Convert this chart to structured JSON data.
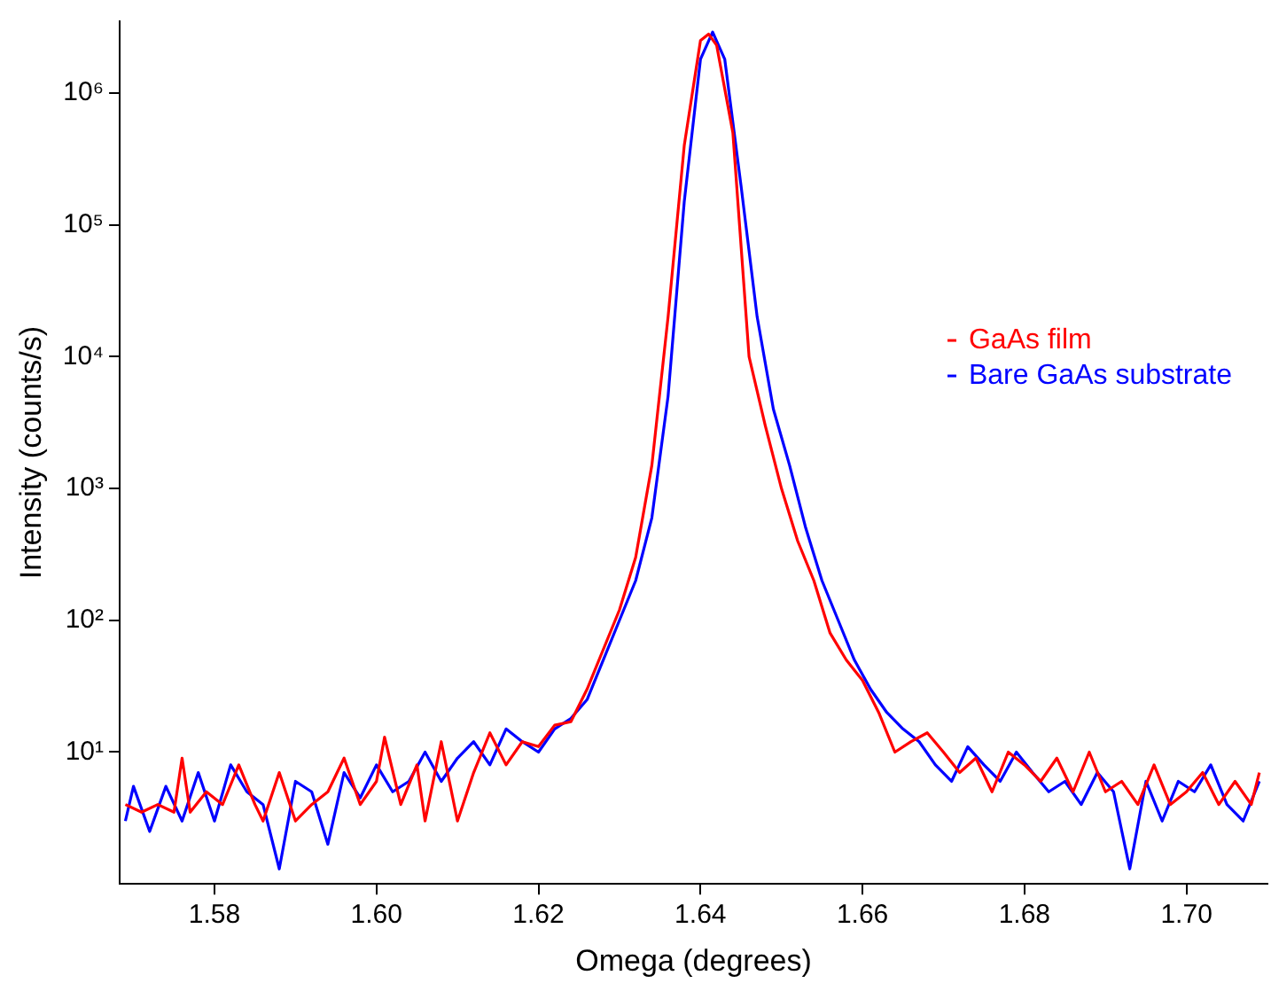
{
  "chart_data": {
    "type": "line",
    "xlabel": "Omega (degrees)",
    "ylabel": "Intensity (counts/s)",
    "log": "y",
    "grid": false,
    "legend": "right",
    "marker": "none",
    "line_style": "solid",
    "xlim": [
      1.5683,
      1.71
    ],
    "ylim": [
      1,
      3500000
    ],
    "xticks": [
      1.58,
      {
        "value": 1.6,
        "label": "1.60"
      },
      1.62,
      1.64,
      1.66,
      1.68,
      {
        "value": 1.7,
        "label": "1.70"
      }
    ],
    "yticks": [
      {
        "value": 10,
        "label": "10¹"
      },
      {
        "value": 100,
        "label": "10²"
      },
      {
        "value": 1000,
        "label": "10³"
      },
      {
        "value": 10000,
        "label": "10⁴"
      },
      {
        "value": 100000,
        "label": "10⁵"
      },
      {
        "value": 1000000,
        "label": "10⁶"
      }
    ],
    "series": [
      {
        "name": "GaAs film",
        "color": "#ff0000",
        "x": [
          1.569,
          1.571,
          1.573,
          1.575,
          1.576,
          1.577,
          1.579,
          1.581,
          1.583,
          1.585,
          1.586,
          1.588,
          1.59,
          1.592,
          1.594,
          1.596,
          1.598,
          1.6,
          1.601,
          1.603,
          1.605,
          1.606,
          1.608,
          1.61,
          1.612,
          1.614,
          1.616,
          1.618,
          1.62,
          1.622,
          1.624,
          1.626,
          1.628,
          1.63,
          1.632,
          1.634,
          1.636,
          1.638,
          1.64,
          1.641,
          1.642,
          1.644,
          1.646,
          1.648,
          1.65,
          1.652,
          1.654,
          1.656,
          1.658,
          1.66,
          1.662,
          1.664,
          1.666,
          1.668,
          1.67,
          1.672,
          1.674,
          1.676,
          1.678,
          1.68,
          1.682,
          1.684,
          1.686,
          1.688,
          1.69,
          1.692,
          1.694,
          1.696,
          1.698,
          1.7,
          1.702,
          1.704,
          1.706,
          1.708,
          1.709
        ],
        "values": [
          4,
          3.5,
          4,
          3.5,
          9,
          3.5,
          5,
          4,
          8,
          4,
          3,
          7,
          3,
          4,
          5,
          9,
          4,
          6,
          13,
          4,
          8,
          3,
          12,
          3,
          7,
          14,
          8,
          12,
          11,
          16,
          17,
          30,
          60,
          120,
          300,
          1500,
          20000,
          400000,
          2500000,
          2800000,
          2300000,
          500000,
          10000,
          3000,
          1000,
          400,
          200,
          80,
          50,
          35,
          20,
          10,
          12,
          14,
          10,
          7,
          9,
          5,
          10,
          8,
          6,
          9,
          5,
          10,
          5,
          6,
          4,
          8,
          4,
          5,
          7,
          4,
          6,
          4,
          7
        ]
      },
      {
        "name": "Bare GaAs substrate",
        "color": "#0000ff",
        "x": [
          1.569,
          1.57,
          1.572,
          1.574,
          1.576,
          1.578,
          1.58,
          1.582,
          1.584,
          1.586,
          1.588,
          1.59,
          1.592,
          1.594,
          1.596,
          1.598,
          1.6,
          1.602,
          1.604,
          1.606,
          1.608,
          1.61,
          1.612,
          1.614,
          1.616,
          1.618,
          1.62,
          1.622,
          1.624,
          1.626,
          1.628,
          1.63,
          1.632,
          1.634,
          1.636,
          1.638,
          1.64,
          1.6415,
          1.643,
          1.645,
          1.647,
          1.649,
          1.651,
          1.653,
          1.655,
          1.657,
          1.659,
          1.661,
          1.663,
          1.665,
          1.667,
          1.669,
          1.671,
          1.673,
          1.675,
          1.677,
          1.679,
          1.681,
          1.683,
          1.685,
          1.687,
          1.689,
          1.691,
          1.693,
          1.695,
          1.697,
          1.699,
          1.701,
          1.703,
          1.705,
          1.707,
          1.709
        ],
        "values": [
          3,
          5.5,
          2.5,
          5.5,
          3,
          7,
          3,
          8,
          5,
          4,
          1.3,
          6,
          5,
          2,
          7,
          4.5,
          8,
          5,
          6,
          10,
          6,
          9,
          12,
          8,
          15,
          12,
          10,
          15,
          18,
          25,
          50,
          100,
          200,
          600,
          5000,
          150000,
          1800000,
          2900000,
          1800000,
          200000,
          20000,
          4000,
          1500,
          500,
          200,
          100,
          50,
          30,
          20,
          15,
          12,
          8,
          6,
          11,
          8,
          6,
          10,
          7,
          5,
          6,
          4,
          7,
          5,
          1.3,
          6,
          3,
          6,
          5,
          8,
          4,
          3,
          6
        ]
      }
    ]
  }
}
